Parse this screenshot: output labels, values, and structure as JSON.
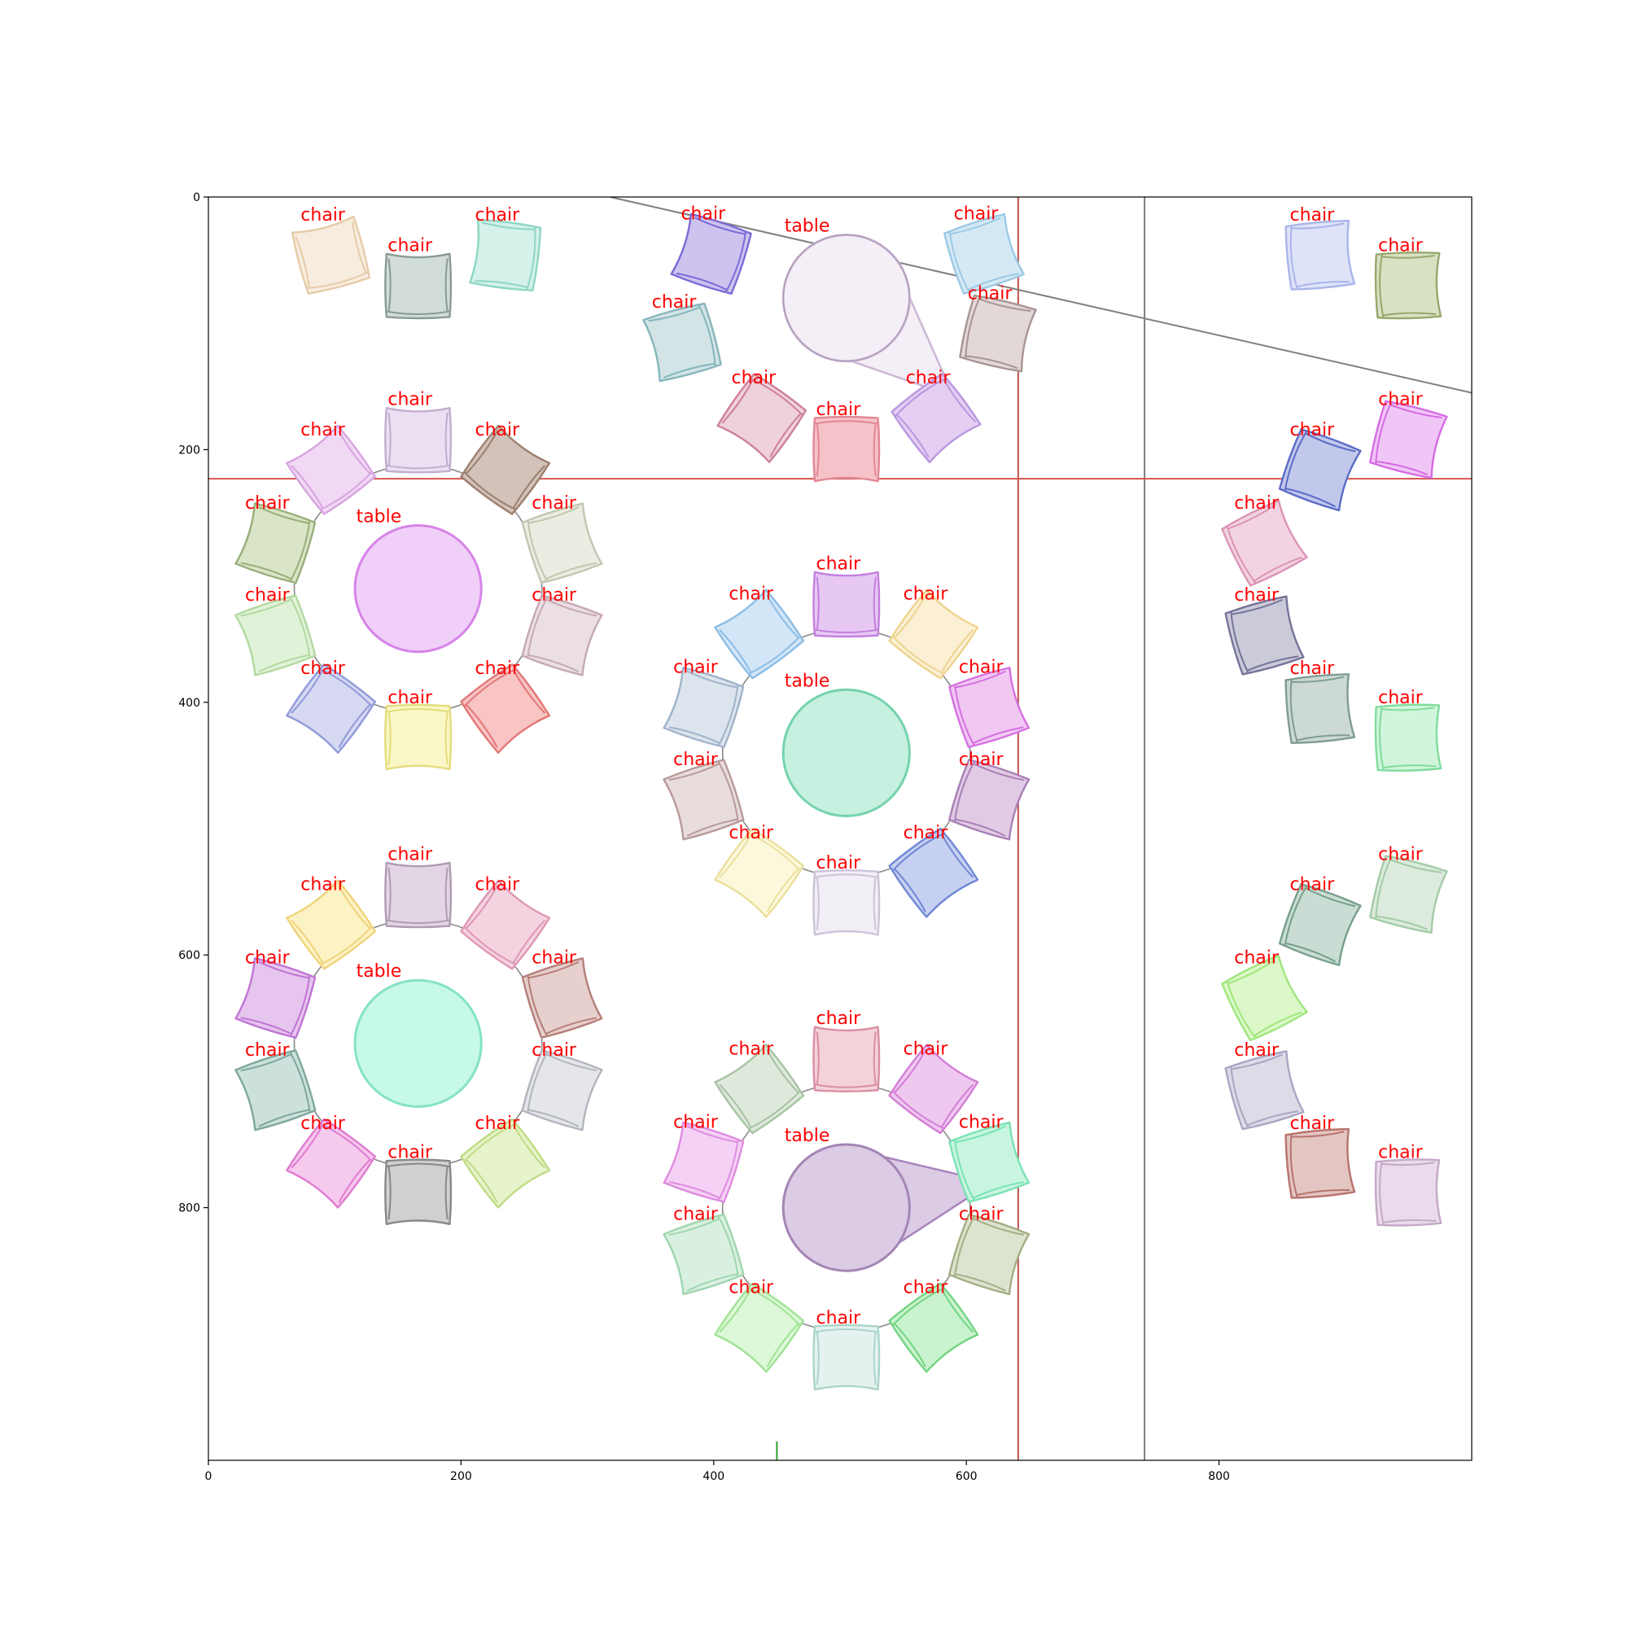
{
  "plot": {
    "x_range": [
      0,
      1000
    ],
    "y_range": [
      1000,
      0
    ],
    "x_ticks": [
      {
        "value": 0,
        "label": "0"
      },
      {
        "value": 200,
        "label": "200"
      },
      {
        "value": 400,
        "label": "400"
      },
      {
        "value": 600,
        "label": "600"
      },
      {
        "value": 800,
        "label": "800"
      }
    ],
    "y_ticks": [
      {
        "value": 0,
        "label": "0"
      },
      {
        "value": 200,
        "label": "200"
      },
      {
        "value": 400,
        "label": "400"
      },
      {
        "value": 600,
        "label": "600"
      },
      {
        "value": 800,
        "label": "800"
      }
    ],
    "label_color": "#ff0000",
    "reference_lines": [
      {
        "orientation": "vertical",
        "value": 641,
        "color": "#c0504d"
      },
      {
        "orientation": "vertical",
        "value": 741,
        "color": "#7f7f7f"
      },
      {
        "orientation": "horizontal",
        "value": 223,
        "color": "#d9534f"
      }
    ],
    "diagonal_line": {
      "from": [
        318,
        0
      ],
      "to": [
        1000,
        155
      ],
      "color": "#7f7f7f"
    },
    "green_tick": {
      "x": 450,
      "y_from": 985,
      "y_to": 1000,
      "color": "#2ca02c"
    }
  },
  "tables": [
    {
      "label": "table",
      "center": [
        505,
        80
      ],
      "radius": 50,
      "fill": "#f4eef6",
      "stroke": "#cdb8d6",
      "ring": false,
      "pointer": [
        590,
        158
      ]
    },
    {
      "label": "table",
      "center": [
        166,
        310
      ],
      "radius": 50,
      "fill": "#f0cff8",
      "stroke": "#d783e8",
      "ring": true
    },
    {
      "label": "table",
      "center": [
        505,
        440
      ],
      "radius": 50,
      "fill": "#c6f0df",
      "stroke": "#75d3ad",
      "ring": true
    },
    {
      "label": "table",
      "center": [
        166,
        670
      ],
      "radius": 50,
      "fill": "#c6f9e6",
      "stroke": "#85e3c2",
      "ring": true
    },
    {
      "label": "table",
      "center": [
        505,
        800
      ],
      "radius": 50,
      "fill": "#dccbe4",
      "stroke": "#a884bd",
      "ring": true,
      "pointer": [
        620,
        780
      ]
    }
  ],
  "chairs": [
    {
      "label": "chair",
      "x": 97,
      "y": 46,
      "fill": "#f7eddf",
      "stroke": "#e7cba8"
    },
    {
      "label": "chair",
      "x": 166,
      "y": 70,
      "fill": "#d2dcd8",
      "stroke": "#899b94"
    },
    {
      "label": "chair",
      "x": 235,
      "y": 46,
      "fill": "#d4f1ea",
      "stroke": "#8dd6c4"
    },
    {
      "label": "chair",
      "x": 398,
      "y": 45,
      "fill": "#cdc3ee",
      "stroke": "#7c6bd8"
    },
    {
      "label": "chair",
      "x": 375,
      "y": 115,
      "fill": "#d2e4e6",
      "stroke": "#86b6bd"
    },
    {
      "label": "chair",
      "x": 438,
      "y": 175,
      "fill": "#efd1db",
      "stroke": "#cd7f99"
    },
    {
      "label": "chair",
      "x": 505,
      "y": 200,
      "fill": "#f6c2c9",
      "stroke": "#e28794"
    },
    {
      "label": "chair",
      "x": 576,
      "y": 175,
      "fill": "#e4cff2",
      "stroke": "#b996e0"
    },
    {
      "label": "chair",
      "x": 614,
      "y": 45,
      "fill": "#d4e9f4",
      "stroke": "#9ccae6"
    },
    {
      "label": "chair",
      "x": 625,
      "y": 108,
      "fill": "#e2d8d8",
      "stroke": "#a99393"
    },
    {
      "label": "chair",
      "x": 97,
      "y": 216,
      "fill": "#f1d8f4",
      "stroke": "#d7a4e0"
    },
    {
      "label": "chair",
      "x": 166,
      "y": 192,
      "fill": "#ebe0f1",
      "stroke": "#c2aed0"
    },
    {
      "label": "chair",
      "x": 235,
      "y": 216,
      "fill": "#d2c2b9",
      "stroke": "#9c7f6f"
    },
    {
      "label": "chair",
      "x": 53,
      "y": 274,
      "fill": "#dae4c7",
      "stroke": "#98af79"
    },
    {
      "label": "chair",
      "x": 280,
      "y": 274,
      "fill": "#e9ede2",
      "stroke": "#c1c7af"
    },
    {
      "label": "chair",
      "x": 53,
      "y": 347,
      "fill": "#e0f2d8",
      "stroke": "#b2d99f"
    },
    {
      "label": "chair",
      "x": 280,
      "y": 347,
      "fill": "#ebdfe4",
      "stroke": "#c4a9b3"
    },
    {
      "label": "chair",
      "x": 97,
      "y": 405,
      "fill": "#d6d9f1",
      "stroke": "#909adb"
    },
    {
      "label": "chair",
      "x": 166,
      "y": 428,
      "fill": "#f8f7c5",
      "stroke": "#e5dc7c"
    },
    {
      "label": "chair",
      "x": 235,
      "y": 405,
      "fill": "#f8c4c4",
      "stroke": "#e47676"
    },
    {
      "label": "chair",
      "x": 436,
      "y": 346,
      "fill": "#d3e6f7",
      "stroke": "#8bbde6"
    },
    {
      "label": "chair",
      "x": 505,
      "y": 322,
      "fill": "#e6c8f2",
      "stroke": "#c37ee0"
    },
    {
      "label": "chair",
      "x": 574,
      "y": 346,
      "fill": "#fbf0d4",
      "stroke": "#eed38e"
    },
    {
      "label": "chair",
      "x": 392,
      "y": 404,
      "fill": "#dce4ed",
      "stroke": "#9fb3ca"
    },
    {
      "label": "chair",
      "x": 618,
      "y": 404,
      "fill": "#f0c8f2",
      "stroke": "#d670e2"
    },
    {
      "label": "chair",
      "x": 392,
      "y": 477,
      "fill": "#e8dcdc",
      "stroke": "#b89a9a"
    },
    {
      "label": "chair",
      "x": 618,
      "y": 477,
      "fill": "#e1cbe4",
      "stroke": "#a980b6"
    },
    {
      "label": "chair",
      "x": 436,
      "y": 535,
      "fill": "#fcf8dc",
      "stroke": "#eadf9c"
    },
    {
      "label": "chair",
      "x": 505,
      "y": 559,
      "fill": "#f2eef5",
      "stroke": "#cdc2d8"
    },
    {
      "label": "chair",
      "x": 574,
      "y": 535,
      "fill": "#c6d1f1",
      "stroke": "#6f87d6"
    },
    {
      "label": "chair",
      "x": 97,
      "y": 576,
      "fill": "#fdf2c4",
      "stroke": "#efd37a"
    },
    {
      "label": "chair",
      "x": 166,
      "y": 552,
      "fill": "#e3d6e4",
      "stroke": "#b09ab4"
    },
    {
      "label": "chair",
      "x": 235,
      "y": 576,
      "fill": "#f5d2e0",
      "stroke": "#df97b3"
    },
    {
      "label": "chair",
      "x": 53,
      "y": 634,
      "fill": "#e6c5ee",
      "stroke": "#c075d4"
    },
    {
      "label": "chair",
      "x": 280,
      "y": 634,
      "fill": "#e6cfcc",
      "stroke": "#b57f79"
    },
    {
      "label": "chair",
      "x": 53,
      "y": 707,
      "fill": "#cce1dc",
      "stroke": "#7fa89d"
    },
    {
      "label": "chair",
      "x": 280,
      "y": 707,
      "fill": "#e5e6ea",
      "stroke": "#b3b5bd"
    },
    {
      "label": "chair",
      "x": 97,
      "y": 765,
      "fill": "#f6c9ee",
      "stroke": "#e07bd0"
    },
    {
      "label": "chair",
      "x": 166,
      "y": 788,
      "fill": "#d0d0d0",
      "stroke": "#888888"
    },
    {
      "label": "chair",
      "x": 235,
      "y": 765,
      "fill": "#e6f3cb",
      "stroke": "#bfdc84"
    },
    {
      "label": "chair",
      "x": 436,
      "y": 706,
      "fill": "#dee9dc",
      "stroke": "#a7c3a3"
    },
    {
      "label": "chair",
      "x": 505,
      "y": 682,
      "fill": "#f3d2da",
      "stroke": "#d98fa1"
    },
    {
      "label": "chair",
      "x": 574,
      "y": 706,
      "fill": "#efc8f0",
      "stroke": "#d27ed6"
    },
    {
      "label": "chair",
      "x": 392,
      "y": 764,
      "fill": "#f5d1f5",
      "stroke": "#df8be0"
    },
    {
      "label": "chair",
      "x": 618,
      "y": 764,
      "fill": "#c8f5e0",
      "stroke": "#7ae2b4"
    },
    {
      "label": "chair",
      "x": 392,
      "y": 837,
      "fill": "#d9f0e0",
      "stroke": "#9ed6ad"
    },
    {
      "label": "chair",
      "x": 618,
      "y": 837,
      "fill": "#dce3cf",
      "stroke": "#a3ae83"
    },
    {
      "label": "chair",
      "x": 436,
      "y": 895,
      "fill": "#dcf8d8",
      "stroke": "#9fe294"
    },
    {
      "label": "chair",
      "x": 505,
      "y": 919,
      "fill": "#e4f2ef",
      "stroke": "#abd4ca"
    },
    {
      "label": "chair",
      "x": 574,
      "y": 895,
      "fill": "#c9f3cf",
      "stroke": "#73d482"
    },
    {
      "label": "chair",
      "x": 880,
      "y": 46,
      "fill": "#dfe3f8",
      "stroke": "#a9b5ea"
    },
    {
      "label": "chair",
      "x": 950,
      "y": 70,
      "fill": "#d9e1c3",
      "stroke": "#95a86d"
    },
    {
      "label": "chair",
      "x": 880,
      "y": 216,
      "fill": "#c2c8ec",
      "stroke": "#5b6cc6"
    },
    {
      "label": "chair",
      "x": 950,
      "y": 192,
      "fill": "#f0c6f6",
      "stroke": "#d66be4"
    },
    {
      "label": "chair",
      "x": 836,
      "y": 274,
      "fill": "#f2d3e2",
      "stroke": "#dc93b4"
    },
    {
      "label": "chair",
      "x": 836,
      "y": 347,
      "fill": "#cbcad9",
      "stroke": "#75739a"
    },
    {
      "label": "chair",
      "x": 880,
      "y": 405,
      "fill": "#ccd9d4",
      "stroke": "#7e9c8f"
    },
    {
      "label": "chair",
      "x": 950,
      "y": 428,
      "fill": "#d1f5dc",
      "stroke": "#80dd9c"
    },
    {
      "label": "chair",
      "x": 880,
      "y": 576,
      "fill": "#c9ddd4",
      "stroke": "#779f8b"
    },
    {
      "label": "chair",
      "x": 950,
      "y": 552,
      "fill": "#dcebdd",
      "stroke": "#a3cba6"
    },
    {
      "label": "chair",
      "x": 836,
      "y": 634,
      "fill": "#dcf8c9",
      "stroke": "#9fe67c"
    },
    {
      "label": "chair",
      "x": 836,
      "y": 707,
      "fill": "#dedbe8",
      "stroke": "#aaa5c3"
    },
    {
      "label": "chair",
      "x": 880,
      "y": 765,
      "fill": "#e3c5c2",
      "stroke": "#b7736d"
    },
    {
      "label": "chair",
      "x": 950,
      "y": 788,
      "fill": "#e9dbeb",
      "stroke": "#c4a9c8"
    }
  ]
}
